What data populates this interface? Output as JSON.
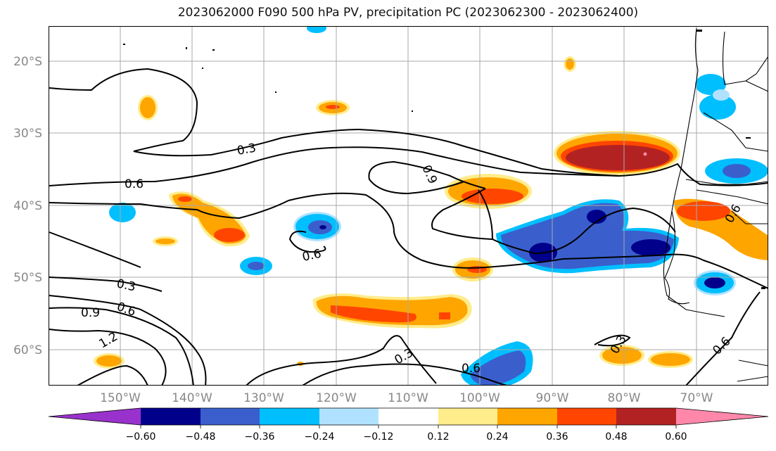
{
  "title": "2023062000 F090 500 hPa PV, precipitation PC (2023062300 - 2023062400)",
  "map": {
    "lon_ticks": [
      "150°W",
      "140°W",
      "130°W",
      "120°W",
      "110°W",
      "100°W",
      "90°W",
      "80°W",
      "70°W"
    ],
    "lat_ticks": [
      "20°S",
      "30°S",
      "40°S",
      "50°S",
      "60°S"
    ],
    "contour_labels": [
      "0.3",
      "0.6",
      "0.9",
      "0.6",
      "0.3",
      "0.6",
      "0.9",
      "1.2",
      "0.3",
      "0.6",
      "0.3",
      "0.6",
      "0.6"
    ]
  },
  "colorbar": {
    "ticks": [
      "−0.60",
      "−0.48",
      "−0.36",
      "−0.24",
      "−0.12",
      "0.12",
      "0.24",
      "0.36",
      "0.48",
      "0.60"
    ],
    "colors": [
      "#9932CC",
      "#00008B",
      "#3A5FCD",
      "#00BFFF",
      "#B0E2FF",
      "#FFFFFF",
      "#FFEC8B",
      "#FFA500",
      "#FF4500",
      "#B22222",
      "#FF88AA"
    ]
  }
}
